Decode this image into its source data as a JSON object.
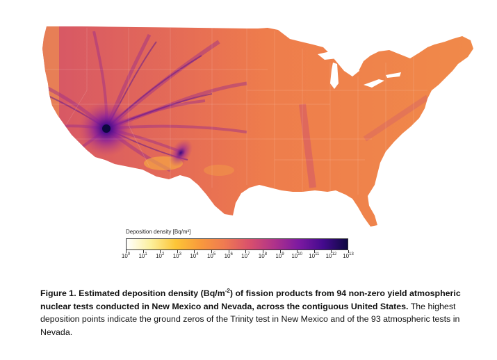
{
  "figure": {
    "map_description": "Contiguous United States choropleth of deposition density",
    "colorbar": {
      "label": "Deposition density [Bq/m²]",
      "base": "10",
      "exponents": [
        "0",
        "1",
        "2",
        "3",
        "4",
        "5",
        "6",
        "7",
        "8",
        "9",
        "10",
        "11",
        "12",
        "13"
      ],
      "min_exponent": 0,
      "max_exponent": 13,
      "colors": {
        "c0": "#ffffff",
        "c1": "#fcef9b",
        "c2": "#fcc537",
        "c3": "#f99a3c",
        "c4": "#ef7a52",
        "c5": "#d9506c",
        "c6": "#b0338a",
        "c7": "#7d1aa1",
        "c8": "#440a8e",
        "c9": "#0d0840"
      }
    },
    "hotspots": {
      "nevada_test_site_exponent": 12.5,
      "trinity_test_exponent": 11,
      "typical_background_exponent": 7
    },
    "caption": {
      "bold_part1": "Figure 1. Estimated deposition density (Bq/m",
      "bold_sup": "-2",
      "bold_part2": ") of fission products from 94 non-zero yield atmospheric nuclear tests conducted in New Mexico and Nevada, across the contiguous United States.",
      "normal_part": " The highest deposition points indicate the ground zeros of the Trinity test in New Mexico and of the 93 atmospheric tests in Nevada."
    }
  }
}
